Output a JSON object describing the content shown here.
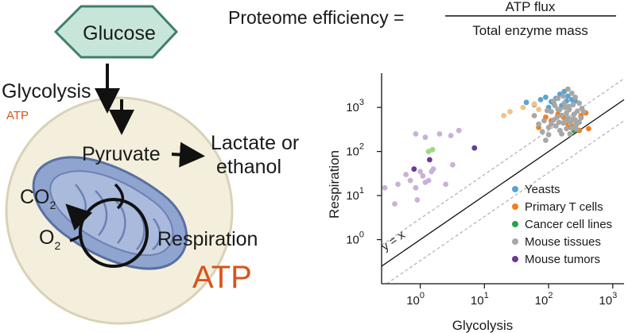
{
  "diagram": {
    "glucose": "Glucose",
    "glycolysis": "Glycolysis",
    "atp_small": "ATP",
    "pyruvate": "Pyruvate",
    "lactate_line1": "Lactate or",
    "lactate_line2": "ethanol",
    "co2": "CO",
    "co2_sub": "2",
    "o2": "O",
    "o2_sub": "2",
    "respiration": "Respiration",
    "atp_big": "ATP"
  },
  "equation": {
    "lhs": "Proteome efficiency =",
    "numerator": "ATP flux",
    "denominator": "Total enzyme mass"
  },
  "colors": {
    "cell_fill": "#f3efdc",
    "cell_stroke": "#d9d2b8",
    "hexagon_fill": "#c7e6d9",
    "hexagon_stroke": "#3f7f6a",
    "mito_fill": "#8fa5cf",
    "mito_stroke": "#5a6fa3",
    "atp": "#d9531e"
  },
  "chart_data": {
    "type": "scatter",
    "xlabel": "Glycolysis",
    "ylabel": "Respiration",
    "xscale": "log",
    "yscale": "log",
    "xlim": [
      0.25,
      1500
    ],
    "ylim": [
      0.1,
      6000
    ],
    "x_ticks": [
      {
        "base": "10",
        "exp": "0",
        "value": 1
      },
      {
        "base": "10",
        "exp": "1",
        "value": 10
      },
      {
        "base": "10",
        "exp": "2",
        "value": 100
      },
      {
        "base": "10",
        "exp": "3",
        "value": 1000
      }
    ],
    "y_ticks": [
      {
        "base": "10",
        "exp": "0",
        "value": 1
      },
      {
        "base": "10",
        "exp": "1",
        "value": 10
      },
      {
        "base": "10",
        "exp": "2",
        "value": 100
      },
      {
        "base": "10",
        "exp": "3",
        "value": 1000
      }
    ],
    "identity_label": "y = x",
    "legend_position": "bottom-right",
    "series": [
      {
        "name": "Yeasts",
        "color": "#5ba3d0",
        "points": [
          [
            45,
            1300
          ],
          [
            60,
            1150
          ],
          [
            75,
            1500
          ],
          [
            90,
            1700
          ],
          [
            110,
            1350
          ],
          [
            130,
            1600
          ],
          [
            150,
            2000
          ],
          [
            175,
            2300
          ],
          [
            200,
            1800
          ],
          [
            230,
            1500
          ],
          [
            260,
            1400
          ],
          [
            160,
            1100
          ],
          [
            100,
            1000
          ],
          [
            120,
            1250
          ],
          [
            190,
            1400
          ]
        ]
      },
      {
        "name": "Primary T cells",
        "color": "#f07f1e",
        "points": [
          [
            70,
            350
          ],
          [
            90,
            600
          ],
          [
            110,
            500
          ],
          [
            140,
            700
          ],
          [
            170,
            600
          ],
          [
            190,
            450
          ],
          [
            230,
            380
          ],
          [
            270,
            450
          ],
          [
            320,
            650
          ],
          [
            380,
            750
          ],
          [
            420,
            330
          ],
          [
            300,
            300
          ],
          [
            200,
            350
          ]
        ]
      },
      {
        "name": "Cancer cell lines",
        "color": "#2e9e4f",
        "points": [
          [
            250,
            300
          ]
        ]
      },
      {
        "name": "Mouse tissues",
        "color": "#a7a7a7",
        "points": [
          [
            60,
            650
          ],
          [
            70,
            420
          ],
          [
            80,
            280
          ],
          [
            90,
            180
          ],
          [
            100,
            240
          ],
          [
            110,
            800
          ],
          [
            120,
            520
          ],
          [
            130,
            380
          ],
          [
            140,
            900
          ],
          [
            150,
            300
          ],
          [
            160,
            660
          ],
          [
            170,
            440
          ],
          [
            180,
            1000
          ],
          [
            190,
            750
          ],
          [
            200,
            580
          ],
          [
            210,
            900
          ],
          [
            220,
            460
          ],
          [
            230,
            340
          ],
          [
            240,
            1150
          ],
          [
            250,
            700
          ],
          [
            260,
            520
          ],
          [
            270,
            400
          ],
          [
            280,
            820
          ],
          [
            120,
            1400
          ],
          [
            140,
            1600
          ],
          [
            170,
            1800
          ],
          [
            200,
            2600
          ],
          [
            230,
            2100
          ],
          [
            260,
            1700
          ],
          [
            300,
            1250
          ],
          [
            330,
            950
          ],
          [
            350,
            800
          ],
          [
            100,
            350
          ],
          [
            135,
            600
          ],
          [
            160,
            250
          ],
          [
            180,
            480
          ],
          [
            215,
            250
          ],
          [
            240,
            560
          ],
          [
            270,
            320
          ],
          [
            110,
            420
          ],
          [
            150,
            900
          ],
          [
            85,
            500
          ],
          [
            95,
            850
          ],
          [
            125,
            1100
          ],
          [
            300,
            460
          ],
          [
            320,
            580
          ],
          [
            190,
            330
          ],
          [
            145,
            460
          ],
          [
            175,
            1250
          ],
          [
            205,
            1050
          ]
        ]
      },
      {
        "name": "Mouse tumors",
        "color": "#6b3a97",
        "points": [
          [
            0.8,
            40
          ],
          [
            1.4,
            65
          ],
          [
            7,
            120
          ]
        ]
      },
      {
        "name": "Mouse tissues (light)",
        "color": "#c9b1d9",
        "legend": false,
        "points": [
          [
            0.28,
            15
          ],
          [
            0.4,
            6.5
          ],
          [
            0.45,
            18
          ],
          [
            0.6,
            30
          ],
          [
            0.7,
            22
          ],
          [
            0.85,
            15
          ],
          [
            1,
            35
          ],
          [
            1.1,
            28
          ],
          [
            1.2,
            20
          ],
          [
            1.35,
            22
          ],
          [
            1.6,
            40
          ],
          [
            0.9,
            8
          ],
          [
            0.85,
            250
          ],
          [
            1.2,
            210
          ],
          [
            2,
            250
          ],
          [
            3,
            230
          ],
          [
            4,
            300
          ],
          [
            2.5,
            18
          ],
          [
            1.5,
            35
          ],
          [
            3.2,
            50
          ]
        ]
      },
      {
        "name": "Cancer lines (light)",
        "color": "#9fd788",
        "legend": false,
        "points": [
          [
            1.35,
            100
          ],
          [
            1.55,
            110
          ]
        ]
      },
      {
        "name": "T cells (light)",
        "color": "#f4c187",
        "legend": false,
        "points": [
          [
            20,
            650
          ],
          [
            25,
            800
          ],
          [
            40,
            1000
          ],
          [
            70,
            900
          ],
          [
            60,
            1200
          ]
        ]
      }
    ]
  }
}
